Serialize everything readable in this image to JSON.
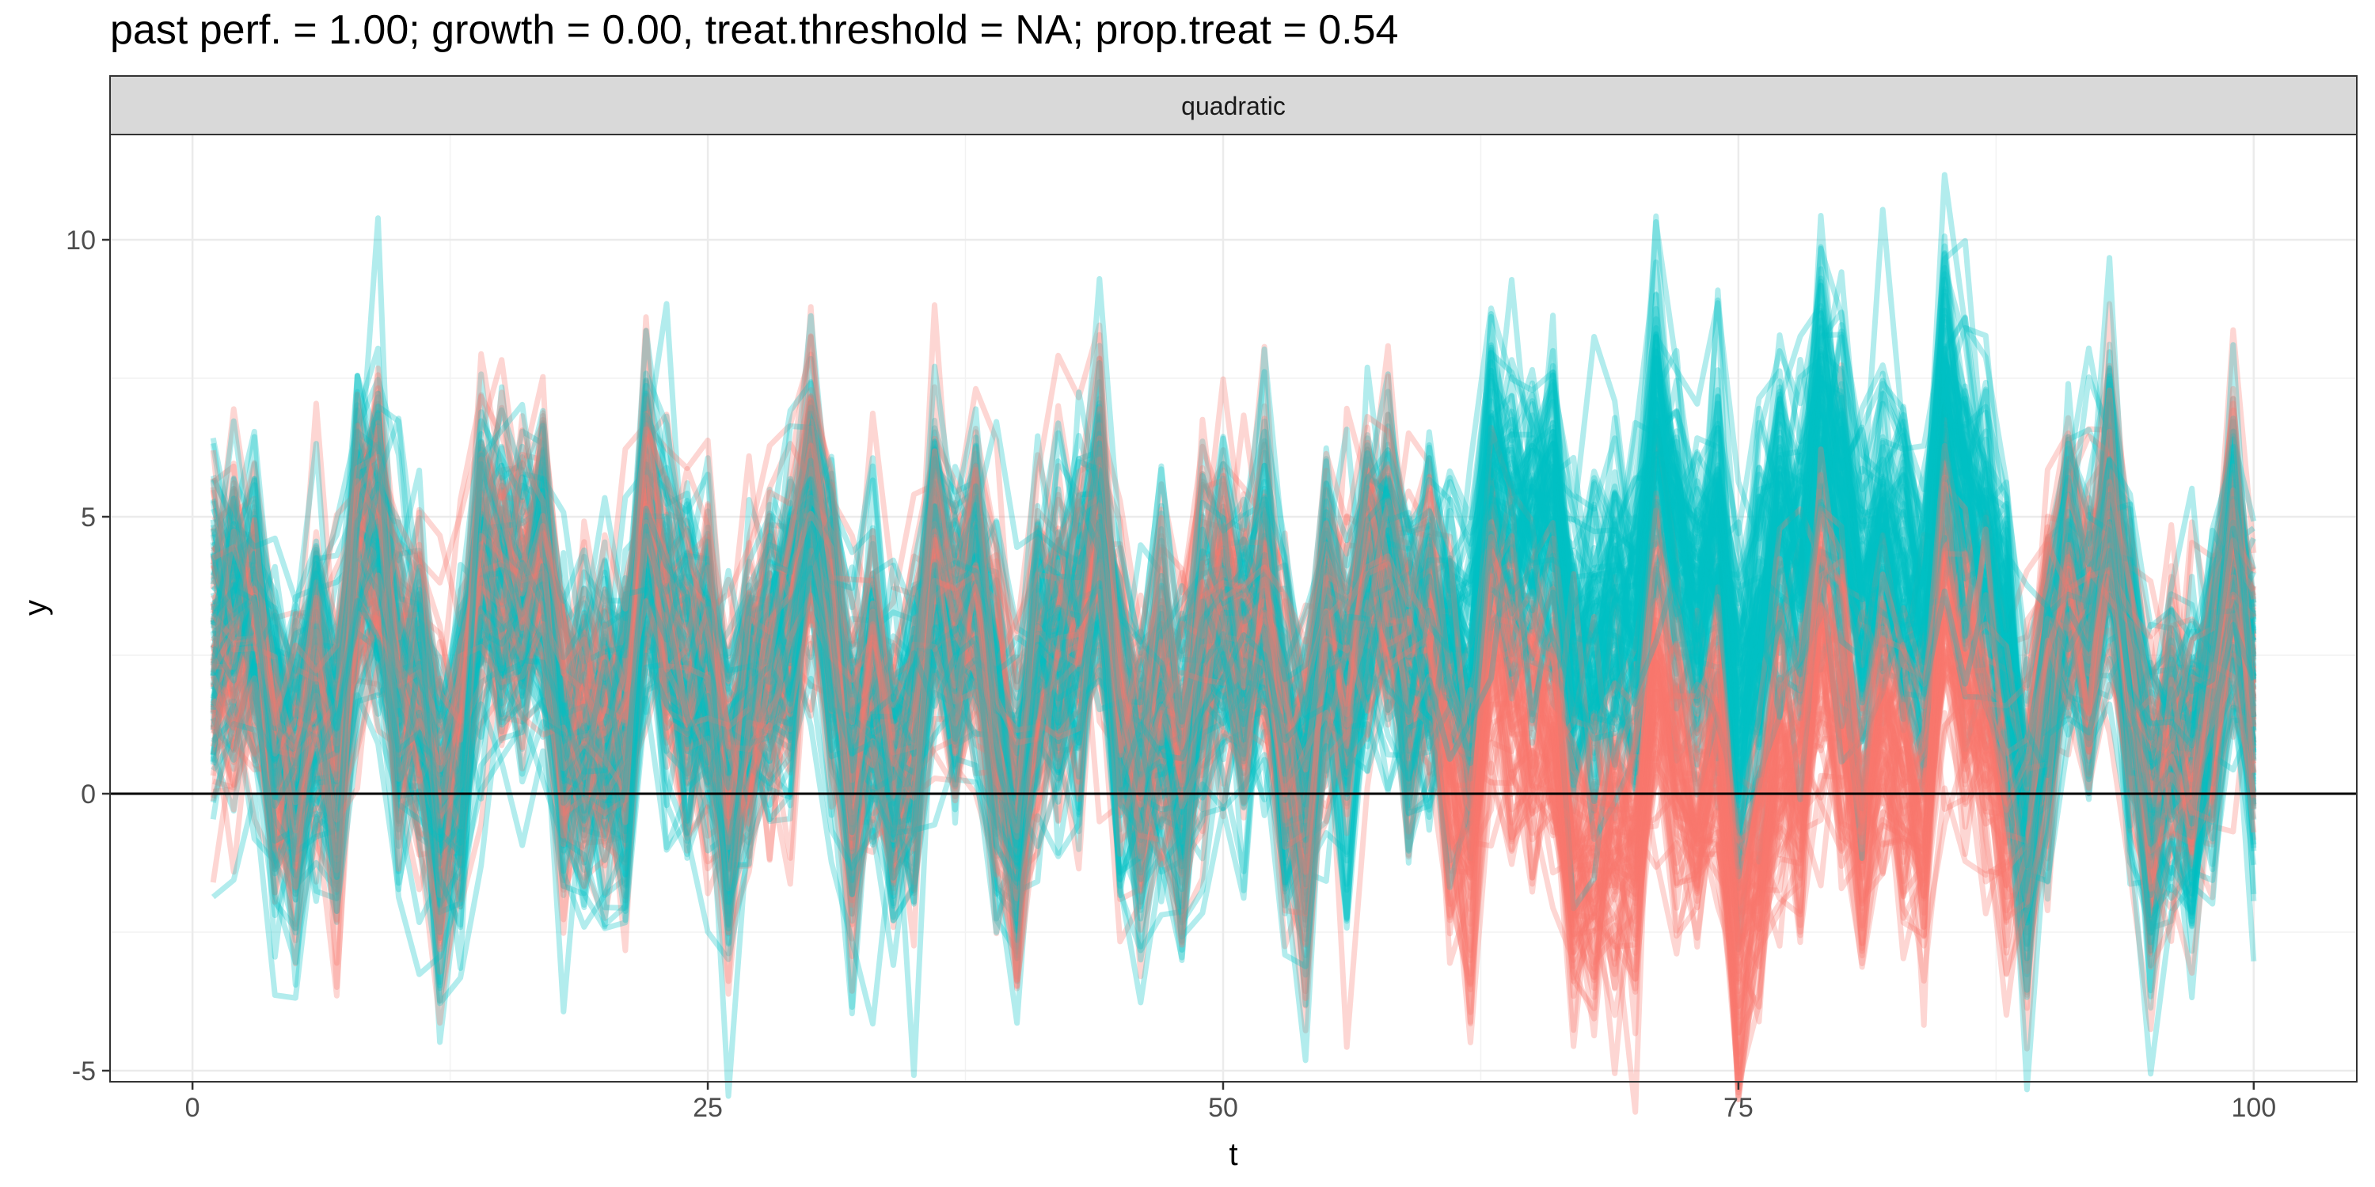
{
  "chart_data": {
    "type": "line",
    "title": "past perf. = 1.00; growth = 0.00,  treat.threshold = NA;  prop.treat = 0.54",
    "facet_label": "quadratic",
    "xlabel": "t",
    "ylabel": "y",
    "xlim": [
      -4,
      105
    ],
    "ylim": [
      -5.2,
      11.9
    ],
    "x_ticks": [
      0,
      25,
      50,
      75,
      100
    ],
    "x_tick_labels": [
      "0",
      "25",
      "50",
      "75",
      "100"
    ],
    "y_ticks": [
      -5,
      0,
      5,
      10
    ],
    "y_tick_labels": [
      "-5",
      "0",
      "5",
      "10"
    ],
    "x_range": [
      1,
      100
    ],
    "reference_line_y": 0,
    "grid": true,
    "legend": "none",
    "series": [
      {
        "group": "control",
        "color": "#F8766D",
        "line_count": 80,
        "mean_shift_x": [
          61,
          88
        ],
        "mean_in_shift": 0.5,
        "mean_baseline": 2.2
      },
      {
        "group": "treated",
        "color": "#00BFC4",
        "line_count": 95,
        "mean_shift_x": [
          61,
          88
        ],
        "mean_in_shift": 4.6,
        "mean_baseline": 2.2
      }
    ]
  }
}
